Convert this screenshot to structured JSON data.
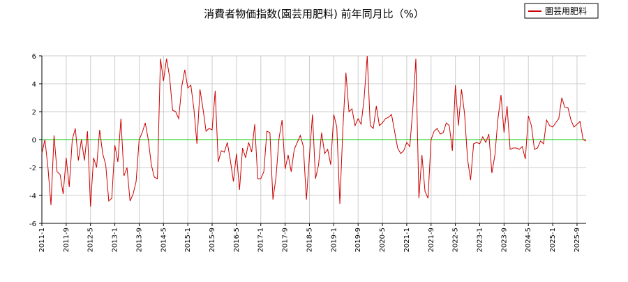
{
  "chart_data": {
    "type": "line",
    "title": "消費者物価指数(園芸用肥料) 前年同月比（%）",
    "xlabel": "",
    "ylabel": "",
    "legend": {
      "position": "top-right"
    },
    "grid": true,
    "ylim": [
      -6,
      6
    ],
    "yticks": [
      "-6",
      "-4",
      "-2",
      "0",
      "2",
      "4",
      "6"
    ],
    "xlim": [
      "2011-01",
      "2025-12"
    ],
    "xticks": [
      "2011-1",
      "2011-9",
      "2012-5",
      "2013-1",
      "2013-9",
      "2014-5",
      "2015-1",
      "2015-9",
      "2016-5",
      "2017-1",
      "2017-9",
      "2018-5",
      "2019-1",
      "2019-9",
      "2020-5",
      "2021-1",
      "2021-9",
      "2022-5",
      "2023-1",
      "2023-9",
      "2024-5",
      "2025-1",
      "2025-9"
    ],
    "reference_line": {
      "y": 0,
      "color": "#00cc00"
    },
    "start": "2011-01",
    "series": [
      {
        "name": "園芸用肥料",
        "color": "#cc0000",
        "values": [
          -1.0,
          0.0,
          -2.0,
          -4.7,
          0.3,
          -2.3,
          -2.5,
          -3.9,
          -1.3,
          -3.4,
          0.0,
          0.8,
          -1.5,
          0.0,
          -1.5,
          0.6,
          -4.8,
          -1.3,
          -2.0,
          0.7,
          -1.0,
          -1.8,
          -4.4,
          -4.2,
          -0.4,
          -1.6,
          1.5,
          -2.6,
          -2.0,
          -4.4,
          -3.9,
          -3.0,
          0.0,
          0.5,
          1.2,
          0.0,
          -1.8,
          -2.7,
          -2.8,
          5.8,
          4.2,
          5.8,
          4.5,
          2.1,
          2.0,
          1.5,
          3.8,
          5.0,
          3.7,
          3.9,
          2.2,
          -0.3,
          3.6,
          2.2,
          0.6,
          0.8,
          0.7,
          3.5,
          -1.6,
          -0.8,
          -0.9,
          -0.2,
          -1.5,
          -3.0,
          -1.0,
          -3.6,
          -0.6,
          -1.3,
          -0.2,
          -0.9,
          1.1,
          -2.8,
          -2.8,
          -2.3,
          0.6,
          0.5,
          -4.3,
          -2.7,
          0.1,
          1.4,
          -2.1,
          -1.1,
          -2.3,
          -0.7,
          -0.2,
          0.3,
          -0.5,
          -4.3,
          -1.2,
          1.8,
          -2.8,
          -1.8,
          0.5,
          -1.0,
          -0.7,
          -1.8,
          1.8,
          0.9,
          -4.6,
          0.8,
          4.8,
          2.0,
          2.2,
          1.0,
          1.5,
          1.1,
          3.0,
          6.0,
          1.0,
          0.8,
          2.4,
          1.0,
          1.2,
          1.5,
          1.6,
          1.8,
          0.6,
          -0.6,
          -1.0,
          -0.8,
          -0.2,
          -0.5,
          2.2,
          5.8,
          -4.2,
          -1.1,
          -3.7,
          -4.2,
          0.0,
          0.6,
          0.8,
          0.4,
          0.5,
          1.2,
          1.0,
          -0.8,
          3.9,
          1.0,
          3.6,
          1.9,
          -1.4,
          -2.9,
          -0.3,
          -0.2,
          -0.3,
          0.2,
          -0.2,
          0.4,
          -2.4,
          -1.1,
          1.5,
          3.2,
          0.5,
          2.4,
          -0.7,
          -0.6,
          -0.6,
          -0.7,
          -0.5,
          -1.4,
          1.7,
          1.0,
          -0.7,
          -0.6,
          -0.1,
          -0.3,
          1.4,
          1.0,
          0.9,
          1.2,
          1.5,
          3.0,
          2.3,
          2.3,
          1.4,
          0.9,
          1.1,
          1.3,
          0.0,
          -0.1
        ]
      }
    ]
  }
}
